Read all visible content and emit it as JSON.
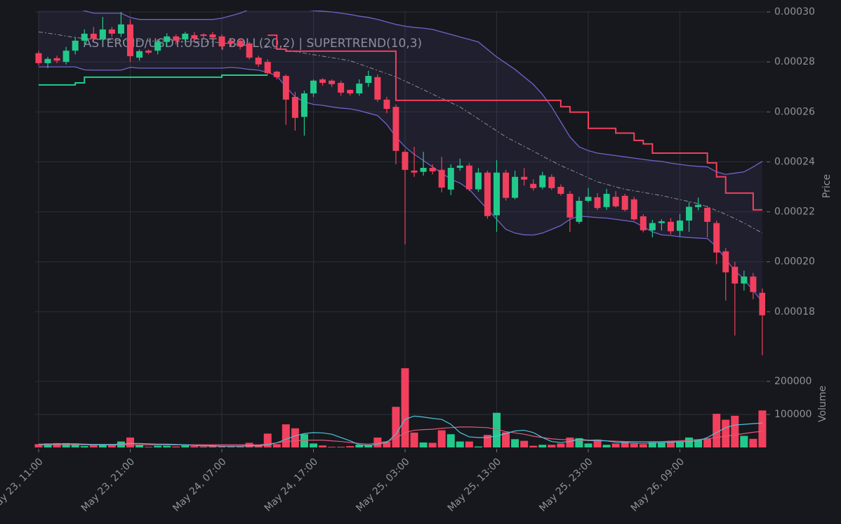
{
  "chart_data": {
    "type": "candlestick",
    "title": "ASTEROID/USDT:USDT | BOLL(20,2) | SUPERTREND(10,3)",
    "ylabel": "Price",
    "categories": [
      "May 23, 11:00",
      null,
      null,
      null,
      null,
      null,
      null,
      null,
      null,
      null,
      "May 23, 21:00",
      null,
      null,
      null,
      null,
      null,
      null,
      null,
      null,
      null,
      "May 24, 07:00",
      null,
      null,
      null,
      null,
      null,
      null,
      null,
      null,
      null,
      "May 24, 17:00",
      null,
      null,
      null,
      null,
      null,
      null,
      null,
      null,
      null,
      "May 25, 03:00",
      null,
      null,
      null,
      null,
      null,
      null,
      null,
      null,
      null,
      "May 25, 13:00",
      null,
      null,
      null,
      null,
      null,
      null,
      null,
      null,
      null,
      "May 25, 23:00",
      null,
      null,
      null,
      null,
      null,
      null,
      null,
      null,
      null,
      "May 26, 09:00",
      null,
      null,
      null,
      null,
      null,
      null,
      null,
      null,
      null
    ],
    "ylim": [
      0.00016,
      0.0003
    ],
    "yticks": [
      {
        "value": 0.00018,
        "label": "0.00018"
      },
      {
        "value": 0.0002,
        "label": "0.00020"
      },
      {
        "value": 0.00022,
        "label": "0.00022"
      },
      {
        "value": 0.00024,
        "label": "0.00024"
      },
      {
        "value": 0.00026,
        "label": "0.00026"
      },
      {
        "value": 0.00028,
        "label": "0.00028"
      },
      {
        "value": 0.0003,
        "label": "0.00030"
      }
    ],
    "grid": true,
    "up_color": "#22c98a",
    "down_color": "#f23f5d",
    "open": [
      0.0002835,
      0.0002795,
      0.0002815,
      0.00028,
      0.0002845,
      0.0002885,
      0.0002913,
      0.0002893,
      0.000293,
      0.0002913,
      0.000295,
      0.0002817,
      0.0002845,
      0.0002845,
      0.000288,
      0.0002902,
      0.000289,
      0.0002907,
      0.000291,
      0.000291,
      0.0002902,
      0.0002885,
      0.0002885,
      0.0002874,
      0.0002817,
      0.00028,
      0.0002761,
      0.0002744,
      0.000266,
      0.000258,
      0.0002674,
      0.000273,
      0.0002725,
      0.0002716,
      0.0002688,
      0.0002674,
      0.0002716,
      0.0002739,
      0.0002649,
      0.000262,
      0.000244,
      0.0002365,
      0.000236,
      0.0002376,
      0.0002368,
      0.0002289,
      0.0002376,
      0.0002385,
      0.000229,
      0.0002357,
      0.0002186,
      0.0002357,
      0.0002256,
      0.000234,
      0.0002312,
      0.0002298,
      0.000234,
      0.00023,
      0.0002272,
      0.000216,
      0.0002244,
      0.0002258,
      0.0002219,
      0.000226,
      0.0002264,
      0.000225,
      0.0002182,
      0.0002126,
      0.0002155,
      0.000216,
      0.0002124,
      0.0002165,
      0.0002219,
      0.0002216,
      0.0002155,
      0.0002042,
      0.000198,
      0.0001913,
      0.0001941,
      0.0001876
    ],
    "high": [
      0.0002845,
      0.000282,
      0.0002825,
      0.000286,
      0.00029,
      0.000293,
      0.000294,
      0.000298,
      0.000294,
      0.0003,
      0.000297,
      0.000285,
      0.000285,
      0.000289,
      0.0002915,
      0.000291,
      0.000292,
      0.000292,
      0.0002915,
      0.000292,
      0.000291,
      0.000289,
      0.0002895,
      0.000288,
      0.0002825,
      0.000281,
      0.0002765,
      0.000275,
      0.000268,
      0.0002685,
      0.000273,
      0.0002735,
      0.000273,
      0.0002725,
      0.000269,
      0.000273,
      0.0002765,
      0.000275,
      0.000266,
      0.000263,
      0.000245,
      0.000246,
      0.000244,
      0.000239,
      0.000242,
      0.000239,
      0.0002413,
      0.0002395,
      0.0002375,
      0.0002365,
      0.0002407,
      0.0002368,
      0.0002365,
      0.0002375,
      0.000233,
      0.000236,
      0.000235,
      0.000231,
      0.0002283,
      0.000226,
      0.0002296,
      0.0002275,
      0.0002292,
      0.0002283,
      0.0002272,
      0.000226,
      0.000219,
      0.0002168,
      0.000217,
      0.0002175,
      0.0002192,
      0.000224,
      0.0002257,
      0.0002225,
      0.0002165,
      0.0002055,
      0.0002,
      0.0001965,
      0.0001955,
      0.0001893
    ],
    "low": [
      0.0002786,
      0.0002775,
      0.0002795,
      0.000279,
      0.000283,
      0.000287,
      0.000288,
      0.000288,
      0.00029,
      0.00029,
      0.00028,
      0.0002805,
      0.000283,
      0.000283,
      0.000286,
      0.000287,
      0.000288,
      0.0002885,
      0.000289,
      0.000289,
      0.000285,
      0.000286,
      0.000285,
      0.000281,
      0.000278,
      0.000275,
      0.000273,
      0.0002548,
      0.0002525,
      0.0002505,
      0.000266,
      0.0002705,
      0.00027,
      0.0002665,
      0.0002665,
      0.0002665,
      0.00027,
      0.000264,
      0.0002595,
      0.000239,
      0.000207,
      0.000234,
      0.0002345,
      0.000235,
      0.0002278,
      0.0002267,
      0.0002365,
      0.0002283,
      0.000228,
      0.0002172,
      0.000212,
      0.0002245,
      0.000225,
      0.0002305,
      0.0002285,
      0.000229,
      0.0002288,
      0.0002265,
      0.000212,
      0.0002152,
      0.0002238,
      0.0002207,
      0.0002208,
      0.0002217,
      0.0002202,
      0.0002165,
      0.0002118,
      0.0002098,
      0.0002125,
      0.000211,
      0.00021,
      0.000212,
      0.0002206,
      0.0002098,
      0.000199,
      0.0001845,
      0.0001705,
      0.0001885,
      0.000185,
      0.0001626
    ],
    "close": [
      0.0002795,
      0.0002812,
      0.0002805,
      0.0002845,
      0.0002885,
      0.0002913,
      0.0002893,
      0.000293,
      0.0002913,
      0.000295,
      0.0002823,
      0.0002843,
      0.0002837,
      0.000288,
      0.0002902,
      0.0002885,
      0.0002913,
      0.0002893,
      0.0002904,
      0.0002898,
      0.0002862,
      0.0002874,
      0.0002862,
      0.0002817,
      0.000279,
      0.0002755,
      0.0002739,
      0.0002649,
      0.0002576,
      0.0002674,
      0.0002725,
      0.0002716,
      0.0002711,
      0.0002677,
      0.0002674,
      0.0002713,
      0.0002744,
      0.0002649,
      0.0002612,
      0.0002444,
      0.0002368,
      0.0002357,
      0.0002376,
      0.0002362,
      0.0002297,
      0.0002376,
      0.0002385,
      0.000229,
      0.0002357,
      0.0002183,
      0.0002357,
      0.0002256,
      0.000234,
      0.0002329,
      0.0002295,
      0.0002346,
      0.0002295,
      0.0002272,
      0.0002177,
      0.0002244,
      0.000226,
      0.0002215,
      0.0002272,
      0.0002222,
      0.0002208,
      0.000217,
      0.0002126,
      0.0002155,
      0.0002162,
      0.0002122,
      0.0002165,
      0.000222,
      0.0002228,
      0.000216,
      0.0002037,
      0.0001958,
      0.0001913,
      0.0001941,
      0.0001879,
      0.0001786
    ],
    "bollinger": {
      "color": "#7163c8",
      "middle_color": "#8a8d94",
      "upper": [
        0.000303,
        0.000303,
        0.0003025,
        0.000302,
        0.0003015,
        0.0003005,
        0.0002995,
        0.0002995,
        0.0002995,
        0.0002995,
        0.0002978,
        0.000297,
        0.000297,
        0.000297,
        0.000297,
        0.000297,
        0.000297,
        0.000297,
        0.000297,
        0.000297,
        0.0002975,
        0.0002985,
        0.0002995,
        0.000301,
        0.000302,
        0.000302,
        0.000302,
        0.000302,
        0.000302,
        0.000301,
        0.0003005,
        0.0003003,
        0.0003,
        0.0002995,
        0.000299,
        0.0002983,
        0.0002978,
        0.000297,
        0.000296,
        0.000295,
        0.0002943,
        0.0002938,
        0.0002935,
        0.000293,
        0.000292,
        0.000291,
        0.00029,
        0.000289,
        0.000288,
        0.000285,
        0.000282,
        0.0002795,
        0.000277,
        0.000274,
        0.000271,
        0.000267,
        0.000262,
        0.000256,
        0.00025,
        0.000246,
        0.0002445,
        0.0002435,
        0.000243,
        0.0002425,
        0.000242,
        0.0002415,
        0.000241,
        0.0002405,
        0.0002402,
        0.0002395,
        0.000239,
        0.0002385,
        0.0002382,
        0.000238,
        0.000236,
        0.000235,
        0.0002355,
        0.000236,
        0.000238,
        0.0002402
      ],
      "middle": [
        0.000292,
        0.0002915,
        0.000291,
        0.0002903,
        0.0002898,
        0.0002893,
        0.0002891,
        0.0002889,
        0.0002888,
        0.0002886,
        0.0002885,
        0.0002884,
        0.0002884,
        0.0002883,
        0.0002883,
        0.0002882,
        0.0002882,
        0.0002881,
        0.0002881,
        0.000288,
        0.0002876,
        0.0002873,
        0.0002869,
        0.0002865,
        0.0002861,
        0.0002858,
        0.0002855,
        0.0002848,
        0.0002841,
        0.0002835,
        0.0002829,
        0.0002823,
        0.0002817,
        0.0002811,
        0.0002805,
        0.0002792,
        0.0002779,
        0.0002766,
        0.0002753,
        0.000274,
        0.0002723,
        0.0002706,
        0.0002689,
        0.0002671,
        0.0002654,
        0.0002637,
        0.000262,
        0.0002596,
        0.0002572,
        0.0002548,
        0.0002524,
        0.00025,
        0.0002481,
        0.0002462,
        0.0002443,
        0.0002423,
        0.0002404,
        0.0002385,
        0.0002369,
        0.0002353,
        0.0002336,
        0.000232,
        0.000231,
        0.00023,
        0.000229,
        0.0002284,
        0.0002278,
        0.0002271,
        0.0002265,
        0.0002257,
        0.0002249,
        0.0002241,
        0.0002233,
        0.000222,
        0.0002205,
        0.000219,
        0.0002173,
        0.0002155,
        0.0002135,
        0.0002115
      ],
      "lower": [
        0.000278,
        0.000278,
        0.000278,
        0.000278,
        0.000278,
        0.0002768,
        0.0002767,
        0.0002767,
        0.0002767,
        0.0002767,
        0.0002778,
        0.0002775,
        0.0002775,
        0.0002775,
        0.0002775,
        0.0002775,
        0.0002775,
        0.0002775,
        0.0002775,
        0.0002775,
        0.0002775,
        0.0002778,
        0.0002775,
        0.000277,
        0.0002767,
        0.0002758,
        0.0002744,
        0.00027,
        0.000266,
        0.000264,
        0.000263,
        0.0002626,
        0.000262,
        0.0002615,
        0.0002612,
        0.0002605,
        0.0002595,
        0.0002585,
        0.000255,
        0.00025,
        0.000246,
        0.000243,
        0.0002405,
        0.000238,
        0.0002355,
        0.000233,
        0.0002315,
        0.000229,
        0.000225,
        0.000221,
        0.000217,
        0.000213,
        0.0002115,
        0.0002108,
        0.0002107,
        0.0002115,
        0.000213,
        0.0002145,
        0.000217,
        0.0002183,
        0.000218,
        0.0002177,
        0.0002175,
        0.000217,
        0.0002165,
        0.000216,
        0.000214,
        0.000212,
        0.0002108,
        0.0002105,
        0.00021,
        0.0002097,
        0.0002095,
        0.0002093,
        0.000206,
        0.000201,
        0.0001965,
        0.000193,
        0.0001885,
        0.000184
      ]
    },
    "supertrend": {
      "up_color": "#1fcc8c",
      "down_color": "#f23f5d",
      "up": [
        0.0002708,
        0.0002708,
        0.0002708,
        0.0002708,
        0.0002716,
        0.0002739,
        0.0002739,
        0.0002739,
        0.0002739,
        0.0002739,
        0.0002739,
        0.0002739,
        0.0002739,
        0.0002739,
        0.0002739,
        0.0002739,
        0.0002739,
        0.0002739,
        0.0002739,
        0.0002739,
        0.0002747,
        0.0002747,
        0.0002747,
        0.0002747,
        0.0002747,
        0.0002747,
        null,
        null,
        null,
        null,
        null,
        null,
        null,
        null,
        null,
        null,
        null,
        null,
        null,
        null,
        null,
        null,
        null,
        null,
        null,
        null,
        null,
        null,
        null,
        null,
        null,
        null,
        null,
        null,
        null,
        null,
        null,
        null,
        null,
        null,
        null,
        null,
        null,
        null,
        null,
        null,
        null,
        null,
        null,
        null,
        null,
        null,
        null,
        null,
        null,
        null,
        null,
        null,
        null,
        null
      ],
      "down": [
        null,
        null,
        null,
        null,
        null,
        null,
        null,
        null,
        null,
        null,
        null,
        null,
        null,
        null,
        null,
        null,
        null,
        null,
        null,
        null,
        null,
        null,
        null,
        null,
        null,
        0.0002907,
        0.0002851,
        0.0002843,
        0.0002843,
        0.0002843,
        0.0002843,
        0.0002843,
        0.0002843,
        0.0002843,
        0.0002843,
        0.0002843,
        0.0002843,
        0.0002843,
        0.0002843,
        0.0002646,
        0.0002646,
        0.0002646,
        0.0002646,
        0.0002646,
        0.0002646,
        0.0002646,
        0.0002646,
        0.0002646,
        0.0002646,
        0.0002646,
        0.0002646,
        0.0002646,
        0.0002646,
        0.0002646,
        0.0002646,
        0.0002646,
        0.0002646,
        0.0002621,
        0.0002599,
        0.0002599,
        0.0002534,
        0.0002534,
        0.0002534,
        0.0002515,
        0.0002515,
        0.0002486,
        0.0002472,
        0.0002435,
        0.0002435,
        0.0002435,
        0.0002435,
        0.0002435,
        0.0002435,
        0.0002396,
        0.000234,
        0.0002275,
        0.0002275,
        0.0002275,
        0.0002208,
        0.0002208
      ]
    },
    "volume": {
      "ylabel": "Volume",
      "ylim": [
        0,
        250000
      ],
      "yticks": [
        100000,
        200000
      ],
      "values": [
        10000,
        12000,
        13000,
        13000,
        12000,
        4000,
        7000,
        9000,
        10000,
        18000,
        30000,
        9000,
        2000,
        5000,
        5000,
        3000,
        6000,
        4000,
        3000,
        5000,
        4000,
        3000,
        3000,
        14000,
        6000,
        42000,
        10000,
        70000,
        58000,
        40000,
        12000,
        6000,
        2000,
        2000,
        4000,
        8000,
        8000,
        30000,
        18000,
        123000,
        240000,
        45000,
        15000,
        14000,
        52000,
        40000,
        18000,
        18000,
        3000,
        38000,
        105000,
        46000,
        25000,
        20000,
        5000,
        8000,
        8000,
        12000,
        30000,
        28000,
        12000,
        24000,
        8000,
        12000,
        18000,
        12000,
        10000,
        16000,
        14000,
        20000,
        18000,
        30000,
        24000,
        26000,
        102000,
        84000,
        96000,
        35000,
        26000,
        112000
      ],
      "ma_fast_color": "#4fc3dc",
      "ma_slow_color": "#e05a7a",
      "ma_fast": [
        10000,
        10000,
        11000,
        11000,
        11000,
        10000,
        9000,
        9000,
        9000,
        10000,
        12000,
        12000,
        11000,
        10000,
        10000,
        9000,
        8000,
        6000,
        5000,
        5000,
        4000,
        4000,
        4000,
        5000,
        5000,
        8000,
        14000,
        25000,
        35000,
        42000,
        45000,
        44000,
        40000,
        30000,
        20000,
        8000,
        6000,
        10000,
        15000,
        40000,
        85000,
        95000,
        92000,
        88000,
        85000,
        70000,
        45000,
        32000,
        30000,
        30000,
        35000,
        42000,
        50000,
        52000,
        45000,
        30000,
        18000,
        15000,
        18000,
        25000,
        22000,
        22000,
        20000,
        16000,
        15000,
        14000,
        13000,
        14000,
        15000,
        16000,
        17000,
        18000,
        20000,
        30000,
        45000,
        60000,
        68000,
        70000,
        72000,
        74000
      ],
      "ma_slow": [
        8000,
        8000,
        8000,
        8000,
        8000,
        8000,
        8000,
        8000,
        8000,
        8000,
        8000,
        8000,
        8000,
        8000,
        8000,
        8000,
        8000,
        8000,
        8000,
        8000,
        8000,
        8000,
        8000,
        8000,
        8000,
        10000,
        14000,
        18000,
        20000,
        22000,
        22000,
        22000,
        20000,
        18000,
        15000,
        12000,
        10000,
        14000,
        18000,
        28000,
        45000,
        52000,
        54000,
        55000,
        58000,
        60000,
        62000,
        62000,
        61000,
        60000,
        55000,
        48000,
        44000,
        40000,
        34000,
        30000,
        26000,
        24000,
        23000,
        22000,
        21000,
        20000,
        20000,
        19000,
        18000,
        18000,
        18000,
        18000,
        18000,
        19000,
        20000,
        22000,
        24000,
        26000,
        30000,
        34000,
        38000,
        42000,
        46000,
        49000
      ]
    }
  }
}
